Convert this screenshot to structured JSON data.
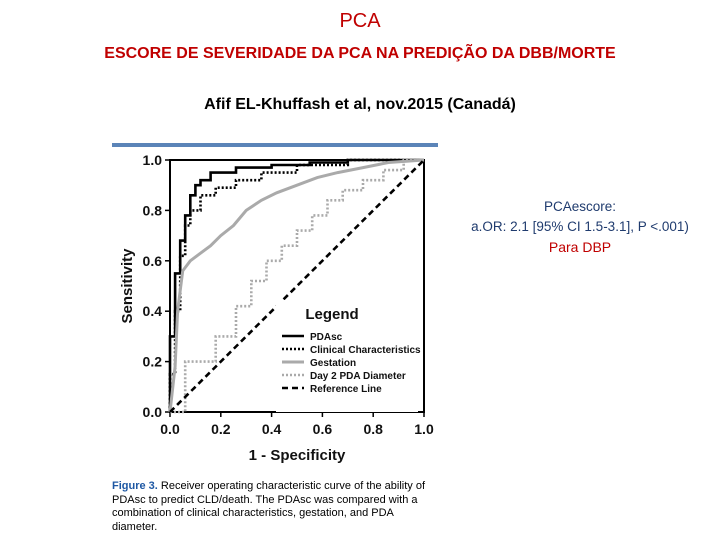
{
  "header": {
    "title": "PCA",
    "subtitle": "ESCORE DE SEVERIDADE DA PCA NA PREDIÇÃO DA DBB/MORTE",
    "reference": "Afif EL-Khuffash et al, nov.2015 (Canadá)"
  },
  "note": {
    "line1": "PCAescore:",
    "line2": "a.OR: 2.1 [95% CI 1.5-3.1], P <.001)",
    "line3": "Para DBP"
  },
  "figure": {
    "caption_label": "Figure 3.",
    "caption_text": "Receiver operating characteristic curve of the ability of PDAsc to predict CLD/death. The PDAsc was compared with a combination of clinical characteristics, gestation, and PDA diameter."
  },
  "chart_data": {
    "type": "line",
    "title": "",
    "xlabel": "1 - Specificity",
    "ylabel": "Sensitivity",
    "xlim": [
      0,
      1
    ],
    "ylim": [
      0,
      1
    ],
    "x_ticks": [
      "0.0",
      "0.2",
      "0.4",
      "0.6",
      "0.8",
      "1.0"
    ],
    "y_ticks": [
      "0.0",
      "0.2",
      "0.4",
      "0.6",
      "0.8",
      "1.0"
    ],
    "legend_title": "Legend",
    "legend_position": "bottom-right",
    "series": [
      {
        "name": "PDAsc",
        "style": "solid",
        "color": "#000000",
        "x": [
          0,
          0,
          0.02,
          0.02,
          0.04,
          0.04,
          0.06,
          0.06,
          0.08,
          0.08,
          0.1,
          0.1,
          0.12,
          0.12,
          0.16,
          0.16,
          0.26,
          0.26,
          0.4,
          0.4,
          0.55,
          0.55,
          0.7,
          0.7,
          1.0
        ],
        "y": [
          0,
          0.3,
          0.3,
          0.55,
          0.55,
          0.68,
          0.68,
          0.78,
          0.78,
          0.86,
          0.86,
          0.9,
          0.9,
          0.92,
          0.92,
          0.95,
          0.95,
          0.97,
          0.97,
          0.98,
          0.98,
          0.99,
          0.99,
          1.0,
          1.0
        ]
      },
      {
        "name": "Clinical Characteristics",
        "style": "dotted",
        "color": "#000000",
        "x": [
          0,
          0,
          0.02,
          0.02,
          0.04,
          0.04,
          0.06,
          0.06,
          0.08,
          0.08,
          0.12,
          0.12,
          0.18,
          0.18,
          0.26,
          0.26,
          0.36,
          0.36,
          0.5,
          0.5,
          0.7,
          0.7,
          1.0
        ],
        "y": [
          0,
          0.15,
          0.15,
          0.4,
          0.4,
          0.62,
          0.62,
          0.74,
          0.74,
          0.8,
          0.8,
          0.86,
          0.86,
          0.89,
          0.89,
          0.92,
          0.92,
          0.95,
          0.95,
          0.98,
          0.98,
          1.0,
          1.0
        ]
      },
      {
        "name": "Gestation",
        "style": "solid",
        "color": "#aaaaaa",
        "x": [
          0,
          0.02,
          0.03,
          0.05,
          0.08,
          0.12,
          0.16,
          0.2,
          0.25,
          0.3,
          0.36,
          0.42,
          0.5,
          0.58,
          0.66,
          0.76,
          0.86,
          1.0
        ],
        "y": [
          0,
          0.18,
          0.4,
          0.56,
          0.6,
          0.63,
          0.66,
          0.7,
          0.74,
          0.8,
          0.84,
          0.87,
          0.9,
          0.93,
          0.95,
          0.97,
          0.99,
          1.0
        ],
        "stroke": "gray-light"
      },
      {
        "name": "Day 2 PDA Diameter",
        "style": "dotted",
        "color": "#aaaaaa",
        "x": [
          0,
          0.06,
          0.06,
          0.18,
          0.18,
          0.26,
          0.26,
          0.32,
          0.32,
          0.38,
          0.38,
          0.44,
          0.44,
          0.5,
          0.5,
          0.56,
          0.56,
          0.62,
          0.62,
          0.68,
          0.68,
          0.76,
          0.76,
          0.84,
          0.84,
          0.92,
          0.92,
          1.0
        ],
        "y": [
          0,
          0,
          0.2,
          0.2,
          0.3,
          0.3,
          0.42,
          0.42,
          0.52,
          0.52,
          0.6,
          0.6,
          0.66,
          0.66,
          0.72,
          0.72,
          0.78,
          0.78,
          0.84,
          0.84,
          0.88,
          0.88,
          0.92,
          0.92,
          0.96,
          0.96,
          1.0,
          1.0
        ]
      },
      {
        "name": "Reference Line",
        "style": "dashed",
        "color": "#000000",
        "x": [
          0,
          1
        ],
        "y": [
          0,
          1
        ]
      }
    ]
  }
}
